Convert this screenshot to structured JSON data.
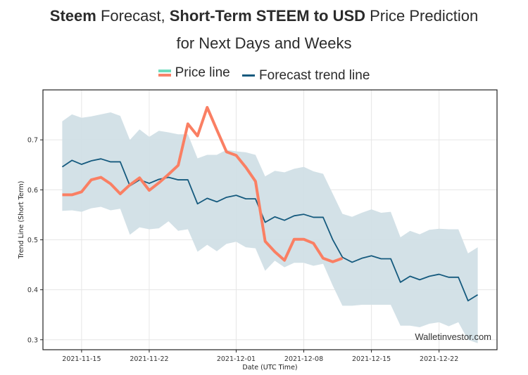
{
  "title": {
    "line1_part1_bold": "Steem",
    "line1_part2": " Forecast, ",
    "line1_part3_bold": "Short-Term STEEM to USD",
    "line1_part4": " Price Prediction",
    "line2": "for Next Days and Weeks"
  },
  "legend": {
    "price_label": "Price line",
    "forecast_label": "Forecast trend line"
  },
  "watermark": "Walletinvestor.com",
  "colors": {
    "price": "#fa7f63",
    "price_legend_top": "#6edcbd",
    "forecast": "#155a7e",
    "band": "#d1dfe6"
  },
  "chart_data": {
    "type": "line",
    "title": "Steem Forecast, Short-Term STEEM to USD Price Prediction for Next Days and Weeks",
    "xlabel": "Date (UTC Time)",
    "ylabel": "Trend Line (Short Term)",
    "ylim": [
      0.28,
      0.8
    ],
    "yticks": [
      0.3,
      0.4,
      0.5,
      0.6,
      0.7
    ],
    "ytick_labels": [
      "0.3",
      "0.4",
      "0.5",
      "0.6",
      "0.7"
    ],
    "xticks": [
      "2021-11-15",
      "2021-11-22",
      "2021-12-01",
      "2021-12-08",
      "2021-12-15",
      "2021-12-22"
    ],
    "xlim": [
      "2021-11-11",
      "2021-12-28"
    ],
    "grid": true,
    "legend_position": "top-center",
    "start_date": "2021-11-13",
    "series": [
      {
        "name": "Forecast trend line",
        "values": [
          0.646,
          0.659,
          0.651,
          0.658,
          0.662,
          0.656,
          0.656,
          0.608,
          0.62,
          0.613,
          0.621,
          0.625,
          0.62,
          0.62,
          0.572,
          0.583,
          0.576,
          0.585,
          0.589,
          0.582,
          0.582,
          0.535,
          0.546,
          0.539,
          0.548,
          0.551,
          0.545,
          0.545,
          0.5,
          0.465,
          0.455,
          0.463,
          0.468,
          0.462,
          0.462,
          0.415,
          0.427,
          0.42,
          0.427,
          0.431,
          0.425,
          0.425,
          0.378,
          0.39
        ]
      },
      {
        "name": "Price line",
        "values": [
          0.59,
          0.59,
          0.596,
          0.62,
          0.625,
          0.612,
          0.592,
          0.61,
          0.624,
          0.599,
          0.614,
          0.631,
          0.649,
          0.732,
          0.708,
          0.765,
          0.72,
          0.676,
          0.669,
          0.645,
          0.617,
          0.497,
          0.476,
          0.459,
          0.501,
          0.501,
          0.493,
          0.463,
          0.456,
          0.463
        ]
      },
      {
        "name": "Forecast upper bound",
        "values": [
          0.737,
          0.751,
          0.744,
          0.747,
          0.751,
          0.755,
          0.748,
          0.7,
          0.721,
          0.706,
          0.718,
          0.715,
          0.711,
          0.711,
          0.663,
          0.67,
          0.67,
          0.68,
          0.677,
          0.675,
          0.67,
          0.627,
          0.638,
          0.635,
          0.642,
          0.646,
          0.637,
          0.632,
          0.592,
          0.552,
          0.546,
          0.554,
          0.561,
          0.554,
          0.556,
          0.505,
          0.518,
          0.511,
          0.52,
          0.522,
          0.521,
          0.521,
          0.473,
          0.485
        ]
      },
      {
        "name": "Forecast lower bound",
        "values": [
          0.558,
          0.559,
          0.556,
          0.563,
          0.566,
          0.559,
          0.562,
          0.51,
          0.525,
          0.521,
          0.523,
          0.537,
          0.518,
          0.521,
          0.476,
          0.49,
          0.477,
          0.492,
          0.496,
          0.485,
          0.483,
          0.438,
          0.458,
          0.445,
          0.454,
          0.454,
          0.448,
          0.452,
          0.408,
          0.368,
          0.368,
          0.37,
          0.37,
          0.37,
          0.37,
          0.328,
          0.328,
          0.325,
          0.332,
          0.335,
          0.327,
          0.335,
          0.3,
          0.293
        ]
      }
    ]
  }
}
